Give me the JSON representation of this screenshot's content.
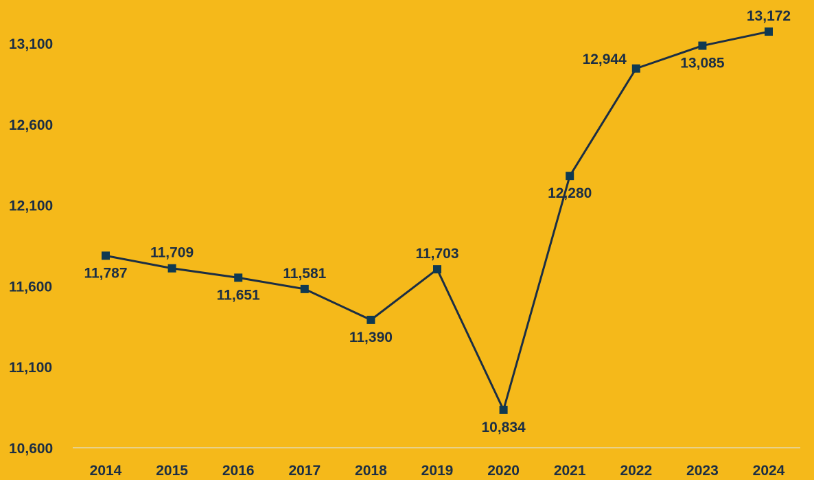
{
  "colors": {
    "background": "#F5B91A",
    "line": "#1B2E44",
    "marker": "#0F3A52",
    "text": "#1B2E44",
    "axis": "#E3D9B0"
  },
  "chart_data": {
    "type": "line",
    "title": "",
    "xlabel": "",
    "ylabel": "",
    "categories": [
      "2014",
      "2015",
      "2016",
      "2017",
      "2018",
      "2019",
      "2020",
      "2021",
      "2022",
      "2023",
      "2024"
    ],
    "series": [
      {
        "values": [
          11787,
          11709,
          11651,
          11581,
          11390,
          11703,
          10834,
          12280,
          12944,
          13085,
          13172
        ],
        "data_labels": [
          "11,787",
          "11,709",
          "11,651",
          "11,581",
          "11,390",
          "11,703",
          "10,834",
          "12,280",
          "12,944",
          "13,085",
          "13,172"
        ],
        "label_positions": [
          "below",
          "above",
          "below",
          "above",
          "below",
          "above",
          "below",
          "below",
          "left",
          "below",
          "above"
        ],
        "marker": "square"
      }
    ],
    "ylim": [
      10600,
      13100
    ],
    "yticks": [
      10600,
      11100,
      11600,
      12100,
      12600,
      13100
    ],
    "ytick_labels": [
      "10,600",
      "11,100",
      "11,600",
      "12,100",
      "12,600",
      "13,100"
    ],
    "grid": false,
    "legend": "none"
  }
}
